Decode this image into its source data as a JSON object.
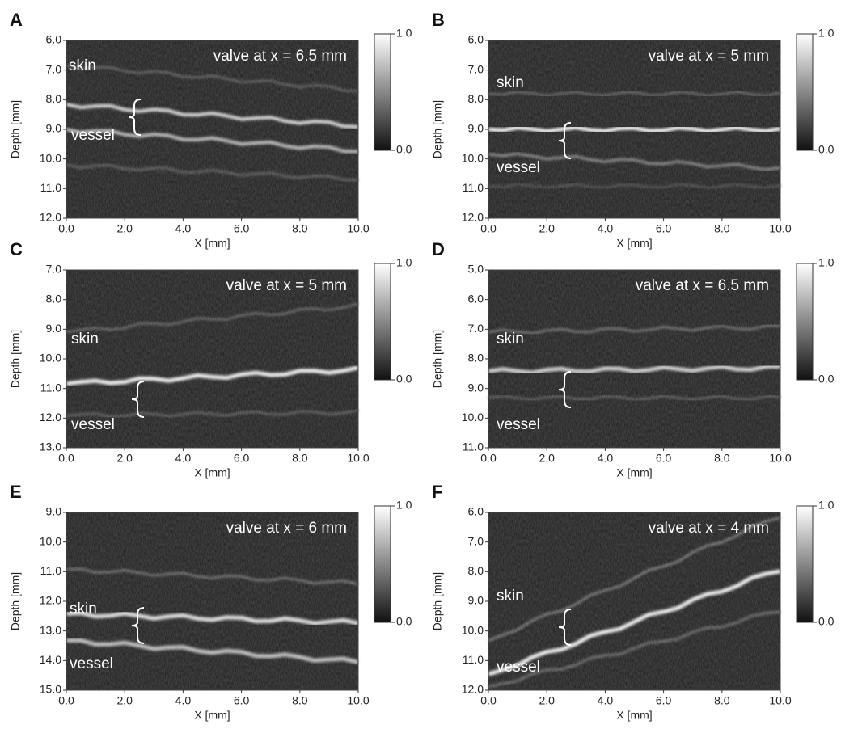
{
  "chart_data": [
    {
      "type": "image",
      "panel": "A",
      "annotation": "valve at x = 6.5 mm",
      "skin_label": "skin",
      "vessel_label": "vessel",
      "xlabel": "X [mm]",
      "ylabel": "Depth [mm]",
      "xlim": [
        0,
        10
      ],
      "ylim": [
        6,
        12
      ],
      "y_inverted": true,
      "xticks": [
        {
          "value": 0,
          "label": "0.0"
        },
        {
          "value": 2,
          "label": "2.0"
        },
        {
          "value": 4,
          "label": "4.0"
        },
        {
          "value": 6,
          "label": "6.0"
        },
        {
          "value": 8,
          "label": "8.0"
        },
        {
          "value": 10,
          "label": "10.0"
        }
      ],
      "yticks": [
        {
          "value": 6,
          "label": "6.0"
        },
        {
          "value": 7,
          "label": "7.0"
        },
        {
          "value": 8,
          "label": "8.0"
        },
        {
          "value": 9,
          "label": "9.0"
        },
        {
          "value": 10,
          "label": "10.0"
        },
        {
          "value": 11,
          "label": "11.0"
        },
        {
          "value": 12,
          "label": "12.0"
        }
      ],
      "colorbar": {
        "lim": [
          0,
          1
        ],
        "ticks": [
          {
            "value": 1,
            "label": "1.0"
          },
          {
            "value": 0,
            "label": "0.0"
          }
        ]
      }
    },
    {
      "type": "image",
      "panel": "B",
      "annotation": "valve at x = 5 mm",
      "skin_label": "skin",
      "vessel_label": "vessel",
      "xlabel": "X [mm]",
      "ylabel": "Depth [mm]",
      "xlim": [
        0,
        10
      ],
      "ylim": [
        6,
        12
      ],
      "y_inverted": true,
      "xticks": [
        {
          "value": 0,
          "label": "0.0"
        },
        {
          "value": 2,
          "label": "2.0"
        },
        {
          "value": 4,
          "label": "4.0"
        },
        {
          "value": 6,
          "label": "6.0"
        },
        {
          "value": 8,
          "label": "8.0"
        },
        {
          "value": 10,
          "label": "10.0"
        }
      ],
      "yticks": [
        {
          "value": 6,
          "label": "6.0"
        },
        {
          "value": 7,
          "label": "7.0"
        },
        {
          "value": 8,
          "label": "8.0"
        },
        {
          "value": 9,
          "label": "9.0"
        },
        {
          "value": 10,
          "label": "10.0"
        },
        {
          "value": 11,
          "label": "11.0"
        },
        {
          "value": 12,
          "label": "12.0"
        }
      ],
      "colorbar": {
        "lim": [
          0,
          1
        ],
        "ticks": [
          {
            "value": 1,
            "label": "1.0"
          },
          {
            "value": 0,
            "label": "0.0"
          }
        ]
      }
    },
    {
      "type": "image",
      "panel": "C",
      "annotation": "valve at x = 5 mm",
      "skin_label": "skin",
      "vessel_label": "vessel",
      "xlabel": "X [mm]",
      "ylabel": "Depth [mm]",
      "xlim": [
        0,
        10
      ],
      "ylim": [
        7,
        13
      ],
      "y_inverted": true,
      "xticks": [
        {
          "value": 0,
          "label": "0.0"
        },
        {
          "value": 2,
          "label": "2.0"
        },
        {
          "value": 4,
          "label": "4.0"
        },
        {
          "value": 6,
          "label": "6.0"
        },
        {
          "value": 8,
          "label": "8.0"
        },
        {
          "value": 10,
          "label": "10.0"
        }
      ],
      "yticks": [
        {
          "value": 7,
          "label": "7.0"
        },
        {
          "value": 8,
          "label": "8.0"
        },
        {
          "value": 9,
          "label": "9.0"
        },
        {
          "value": 10,
          "label": "10.0"
        },
        {
          "value": 11,
          "label": "11.0"
        },
        {
          "value": 12,
          "label": "12.0"
        },
        {
          "value": 13,
          "label": "13.0"
        }
      ],
      "colorbar": {
        "lim": [
          0,
          1
        ],
        "ticks": [
          {
            "value": 1,
            "label": "1.0"
          },
          {
            "value": 0,
            "label": "0.0"
          }
        ]
      }
    },
    {
      "type": "image",
      "panel": "D",
      "annotation": "valve at x = 6.5 mm",
      "skin_label": "skin",
      "vessel_label": "vessel",
      "xlabel": "X [mm]",
      "ylabel": "Depth [mm]",
      "xlim": [
        0,
        10
      ],
      "ylim": [
        5,
        11
      ],
      "y_inverted": true,
      "xticks": [
        {
          "value": 0,
          "label": "0.0"
        },
        {
          "value": 2,
          "label": "2.0"
        },
        {
          "value": 4,
          "label": "4.0"
        },
        {
          "value": 6,
          "label": "6.0"
        },
        {
          "value": 8,
          "label": "8.0"
        },
        {
          "value": 10,
          "label": "10.0"
        }
      ],
      "yticks": [
        {
          "value": 5,
          "label": "5.0"
        },
        {
          "value": 6,
          "label": "6.0"
        },
        {
          "value": 7,
          "label": "7.0"
        },
        {
          "value": 8,
          "label": "8.0"
        },
        {
          "value": 9,
          "label": "9.0"
        },
        {
          "value": 10,
          "label": "10.0"
        },
        {
          "value": 11,
          "label": "11.0"
        }
      ],
      "colorbar": {
        "lim": [
          0,
          1
        ],
        "ticks": [
          {
            "value": 1,
            "label": "1.0"
          },
          {
            "value": 0,
            "label": "0.0"
          }
        ]
      }
    },
    {
      "type": "image",
      "panel": "E",
      "annotation": "valve at x = 6 mm",
      "skin_label": "skin",
      "vessel_label": "vessel",
      "xlabel": "X [mm]",
      "ylabel": "Depth [mm]",
      "xlim": [
        0,
        10
      ],
      "ylim": [
        9,
        15
      ],
      "y_inverted": true,
      "xticks": [
        {
          "value": 0,
          "label": "0.0"
        },
        {
          "value": 2,
          "label": "2.0"
        },
        {
          "value": 4,
          "label": "4.0"
        },
        {
          "value": 6,
          "label": "6.0"
        },
        {
          "value": 8,
          "label": "8.0"
        },
        {
          "value": 10,
          "label": "10.0"
        }
      ],
      "yticks": [
        {
          "value": 9,
          "label": "9.0"
        },
        {
          "value": 10,
          "label": "10.0"
        },
        {
          "value": 11,
          "label": "11.0"
        },
        {
          "value": 12,
          "label": "12.0"
        },
        {
          "value": 13,
          "label": "13.0"
        },
        {
          "value": 14,
          "label": "14.0"
        },
        {
          "value": 15,
          "label": "15.0"
        }
      ],
      "colorbar": {
        "lim": [
          0,
          1
        ],
        "ticks": [
          {
            "value": 1,
            "label": "1.0"
          },
          {
            "value": 0,
            "label": "0.0"
          }
        ]
      }
    },
    {
      "type": "image",
      "panel": "F",
      "annotation": "valve at x = 4 mm",
      "skin_label": "skin",
      "vessel_label": "vessel",
      "xlabel": "X [mm]",
      "ylabel": "Depth [mm]",
      "xlim": [
        0,
        10
      ],
      "ylim": [
        6,
        12
      ],
      "y_inverted": true,
      "xticks": [
        {
          "value": 0,
          "label": "0.0"
        },
        {
          "value": 2,
          "label": "2.0"
        },
        {
          "value": 4,
          "label": "4.0"
        },
        {
          "value": 6,
          "label": "6.0"
        },
        {
          "value": 8,
          "label": "8.0"
        },
        {
          "value": 10,
          "label": "10.0"
        }
      ],
      "yticks": [
        {
          "value": 6,
          "label": "6.0"
        },
        {
          "value": 7,
          "label": "7.0"
        },
        {
          "value": 8,
          "label": "8.0"
        },
        {
          "value": 9,
          "label": "9.0"
        },
        {
          "value": 10,
          "label": "10.0"
        },
        {
          "value": 11,
          "label": "11.0"
        },
        {
          "value": 12,
          "label": "12.0"
        }
      ],
      "colorbar": {
        "lim": [
          0,
          1
        ],
        "ticks": [
          {
            "value": 1,
            "label": "1.0"
          },
          {
            "value": 0,
            "label": "0.0"
          }
        ]
      }
    }
  ]
}
